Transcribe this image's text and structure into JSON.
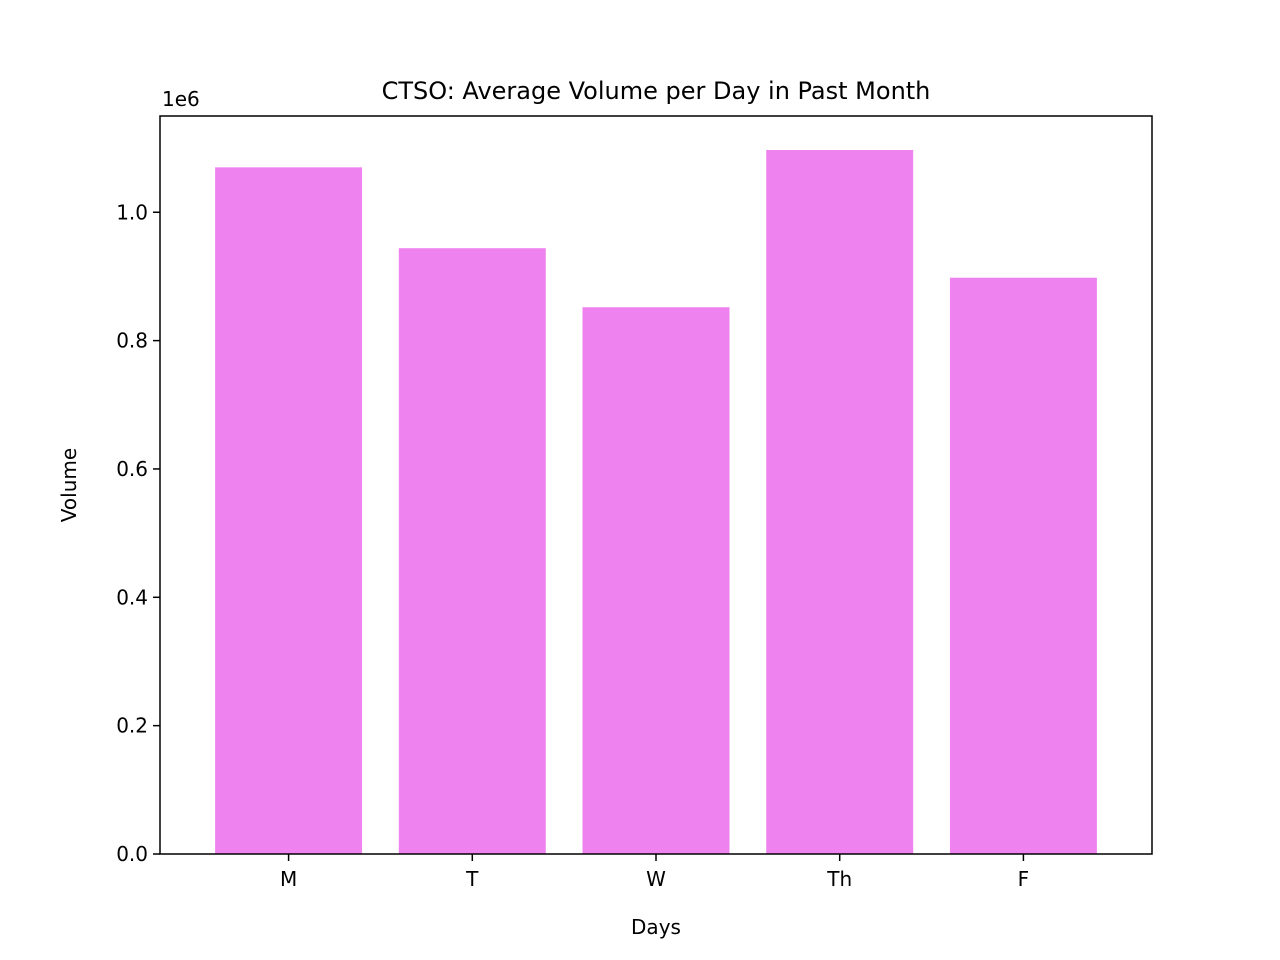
{
  "chart_data": {
    "type": "bar",
    "title": "CTSO: Average Volume per Day in Past Month",
    "xlabel": "Days",
    "ylabel": "Volume",
    "categories": [
      "M",
      "T",
      "W",
      "Th",
      "F"
    ],
    "values": [
      1070000,
      944000,
      852000,
      1097000,
      898000
    ],
    "ylim": [
      0,
      1150000
    ],
    "yticks": [
      0,
      200000,
      400000,
      600000,
      800000,
      1000000
    ],
    "ytick_labels": [
      "0.0",
      "0.2",
      "0.4",
      "0.6",
      "0.8",
      "1.0"
    ],
    "offset_label": "1e6",
    "bar_color": "#EE82EE",
    "grid": false,
    "legend": "none"
  }
}
